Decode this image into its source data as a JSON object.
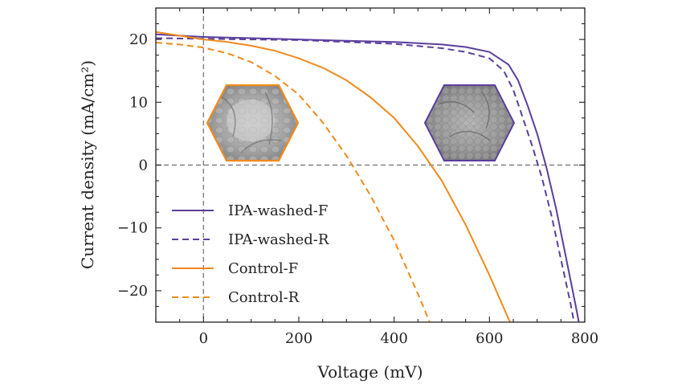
{
  "chart_data": {
    "type": "line",
    "xlabel": "Voltage (mV)",
    "ylabel": "Current density (mA/cm²)",
    "xlim": [
      -100,
      800
    ],
    "ylim": [
      -25,
      25
    ],
    "xticks": [
      0,
      200,
      400,
      600,
      800
    ],
    "yticks": [
      -20,
      -10,
      0,
      10,
      20
    ],
    "xtick_labels": [
      "0",
      "200",
      "400",
      "600",
      "800"
    ],
    "ytick_labels": [
      "−20",
      "−10",
      "0",
      "10",
      "20"
    ],
    "reference_lines": {
      "x": 0,
      "y": 0
    },
    "legend_position": "lower-left",
    "series": [
      {
        "name": "IPA-washed-F",
        "color": "#5b3e9e",
        "dash": "solid",
        "x": [
          -100,
          0,
          100,
          200,
          300,
          400,
          500,
          550,
          600,
          640,
          660,
          680,
          700,
          720,
          740,
          760,
          780,
          790
        ],
        "y": [
          20.8,
          20.4,
          20.2,
          20.0,
          19.8,
          19.6,
          19.2,
          18.8,
          18.0,
          16.0,
          13.5,
          9.5,
          5.0,
          -0.5,
          -7.0,
          -14.5,
          -22.0,
          -26.0
        ]
      },
      {
        "name": "IPA-washed-R",
        "color": "#5b3e9e",
        "dash": "dashed",
        "x": [
          -100,
          0,
          100,
          200,
          300,
          400,
          500,
          550,
          600,
          630,
          650,
          670,
          690,
          710,
          730,
          750,
          770,
          780
        ],
        "y": [
          20.2,
          20.1,
          20.0,
          19.9,
          19.6,
          19.3,
          18.6,
          18.0,
          17.0,
          15.0,
          12.0,
          7.5,
          3.0,
          -2.0,
          -8.0,
          -15.0,
          -22.0,
          -26.0
        ]
      },
      {
        "name": "Control-F",
        "color": "#f28a1c",
        "dash": "solid",
        "x": [
          -100,
          0,
          50,
          100,
          150,
          200,
          250,
          300,
          350,
          400,
          450,
          500,
          550,
          600,
          640,
          650
        ],
        "y": [
          21.2,
          20.0,
          19.6,
          19.0,
          18.2,
          17.0,
          15.5,
          13.5,
          10.8,
          7.5,
          3.0,
          -2.5,
          -9.5,
          -17.5,
          -24.5,
          -26.0
        ]
      },
      {
        "name": "Control-R",
        "color": "#f28a1c",
        "dash": "dashed",
        "x": [
          -100,
          -50,
          0,
          50,
          100,
          150,
          200,
          250,
          300,
          350,
          400,
          450,
          480,
          490
        ],
        "y": [
          19.5,
          19.2,
          18.7,
          17.8,
          16.4,
          14.2,
          11.2,
          6.8,
          1.5,
          -4.8,
          -12.0,
          -20.5,
          -26.0,
          -27.5
        ]
      }
    ]
  },
  "insets": [
    {
      "name": "control-morphology-inset",
      "x": 100,
      "y": 6.5,
      "border_color": "#f28a1c"
    },
    {
      "name": "ipa-washed-morphology-inset",
      "x": 555,
      "y": 6.5,
      "border_color": "#5b3e9e"
    }
  ]
}
